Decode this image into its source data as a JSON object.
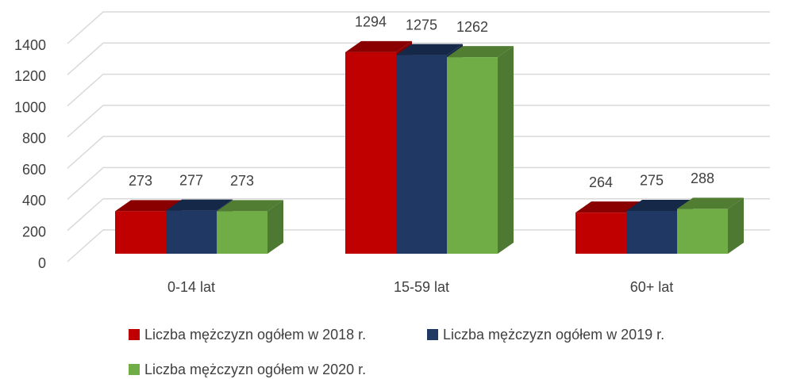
{
  "chart_data": {
    "type": "bar3d",
    "categories": [
      "0-14 lat",
      "15-59 lat",
      "60+ lat"
    ],
    "series": [
      {
        "name": "Liczba mężczyzn ogółem w 2018 r.",
        "color": "#c00000",
        "values": [
          273,
          1294,
          264
        ]
      },
      {
        "name": "Liczba mężczyzn ogółem w 2019 r.",
        "color": "#1f3864",
        "values": [
          277,
          1275,
          275
        ]
      },
      {
        "name": "Liczba mężczyzn ogółem w 2020 r.",
        "color": "#70ad47",
        "values": [
          273,
          1262,
          288
        ]
      }
    ],
    "ylim": [
      0,
      1400
    ],
    "yticks": [
      0,
      200,
      400,
      600,
      800,
      1000,
      1200,
      1400
    ],
    "grid": true,
    "legend": "bottom"
  }
}
